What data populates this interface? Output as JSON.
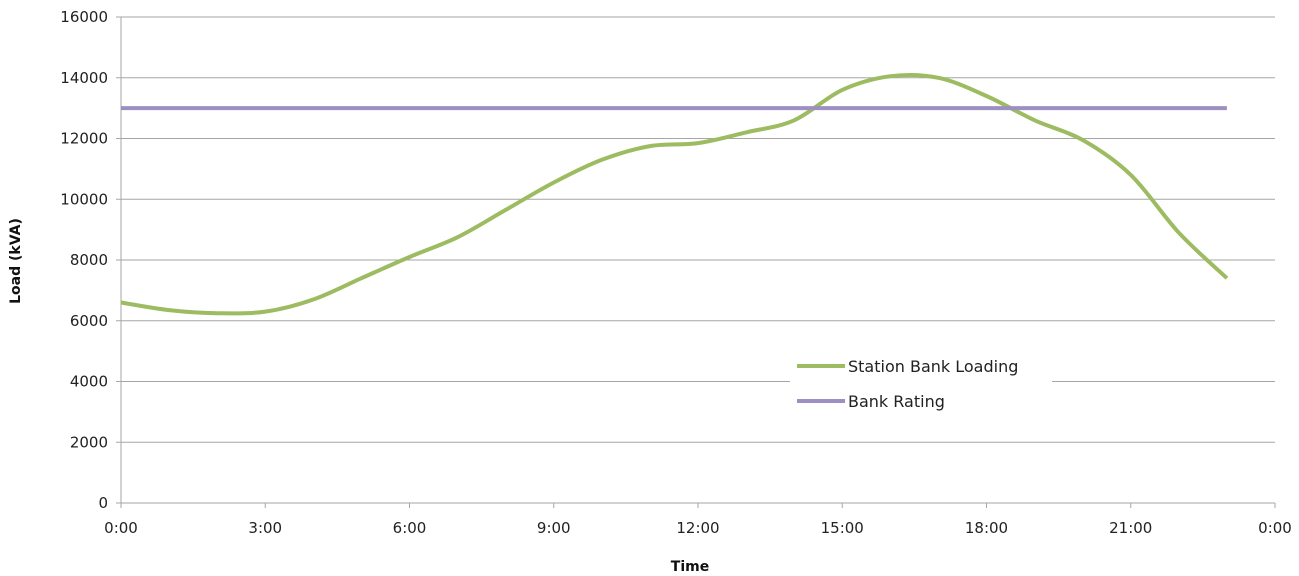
{
  "chart_data": {
    "type": "line",
    "xlabel": "Time",
    "ylabel": "Load (kVA)",
    "x_ticks": [
      "0:00",
      "3:00",
      "6:00",
      "9:00",
      "12:00",
      "15:00",
      "18:00",
      "21:00",
      "0:00"
    ],
    "xlim_hours": [
      0,
      24
    ],
    "ylim": [
      0,
      16000
    ],
    "y_ticks": [
      0,
      2000,
      4000,
      6000,
      8000,
      10000,
      12000,
      14000,
      16000
    ],
    "grid": "horizontal",
    "legend_position": "lower-right",
    "series": [
      {
        "name": "Station Bank Loading",
        "color": "#9dbb61",
        "x_hours": [
          0,
          1,
          2,
          3,
          4,
          5,
          6,
          7,
          8,
          9,
          10,
          11,
          12,
          13,
          14,
          15,
          16,
          17,
          18,
          19,
          20,
          21,
          22,
          23
        ],
        "values": [
          6600,
          6350,
          6250,
          6300,
          6700,
          7400,
          8100,
          8750,
          9650,
          10550,
          11300,
          11750,
          11850,
          12200,
          12600,
          13600,
          14050,
          14000,
          13400,
          12600,
          11950,
          10800,
          8900,
          7400
        ]
      },
      {
        "name": "Bank Rating",
        "color": "#9e8fc2",
        "x_hours": [
          0,
          23
        ],
        "values": [
          13000,
          13000
        ]
      }
    ]
  }
}
